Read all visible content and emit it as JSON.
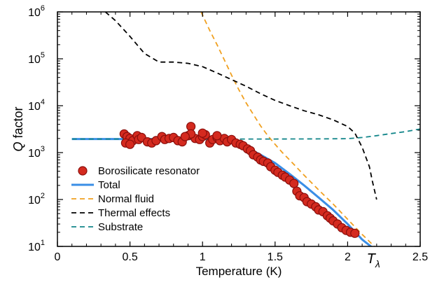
{
  "chart_data": {
    "type": "scatter",
    "y_scale": "log",
    "xlim": [
      0,
      2.5
    ],
    "ylim": [
      10,
      1000000
    ],
    "xlabel": "Temperature (K)",
    "ylabel": "Q factor",
    "ylabel_italic_part": "Q",
    "ylabel_rest": " factor",
    "x_ticks": [
      0,
      0.5,
      1,
      1.5,
      2,
      2.5
    ],
    "x_tick_labels": [
      "0",
      "0.5",
      "1",
      "1.5",
      "2",
      "2.5"
    ],
    "y_tick_bases": [
      "10",
      "10",
      "10",
      "10",
      "10",
      "10"
    ],
    "y_tick_exponents": [
      "1",
      "2",
      "3",
      "4",
      "5",
      "6"
    ],
    "annotation": {
      "symbol": "T",
      "subscript": "λ",
      "x": 2.17
    },
    "legend_position": "lower-left",
    "grid": false,
    "series": [
      {
        "name": "Borosilicate resonator",
        "kind": "scatter",
        "color": "#d42a1f",
        "edge_color": "#8a0e0b",
        "x": [
          0.46,
          0.48,
          0.5,
          0.52,
          0.55,
          0.47,
          0.5,
          0.56,
          0.58,
          0.62,
          0.65,
          0.68,
          0.72,
          0.74,
          0.77,
          0.8,
          0.83,
          0.86,
          0.9,
          0.92,
          0.95,
          0.98,
          1.0,
          1.02,
          1.05,
          1.07,
          1.1,
          1.12,
          1.15,
          1.17,
          1.2,
          1.23,
          1.26,
          1.28,
          1.31,
          1.33,
          1.35,
          1.38,
          1.4,
          1.42,
          1.45,
          1.47,
          1.5,
          1.52,
          1.55,
          1.57,
          1.6,
          1.63,
          1.65,
          1.67,
          1.7,
          1.72,
          1.75,
          1.78,
          1.8,
          1.83,
          1.86,
          1.88,
          1.9,
          1.93,
          1.96,
          1.99,
          2.02,
          2.05,
          0.92,
          0.88,
          1.0,
          1.1
        ],
        "y": [
          2500,
          2200,
          2000,
          1800,
          2300,
          1600,
          1500,
          1900,
          2100,
          1700,
          1600,
          1800,
          2200,
          1900,
          2000,
          2100,
          1800,
          1700,
          2300,
          3600,
          2000,
          1900,
          2200,
          2400,
          1600,
          1900,
          2100,
          1800,
          2000,
          1700,
          1900,
          1600,
          1500,
          1400,
          1200,
          1100,
          900,
          800,
          700,
          650,
          600,
          500,
          420,
          380,
          330,
          300,
          260,
          220,
          150,
          120,
          110,
          90,
          80,
          70,
          60,
          55,
          45,
          40,
          35,
          30,
          25,
          22,
          20,
          19,
          2500,
          2200,
          2600,
          2300
        ]
      },
      {
        "name": "Total",
        "kind": "line",
        "color": "#3a8ee6",
        "dash": "solid",
        "x": [
          0.1,
          0.5,
          0.8,
          1.0,
          1.1,
          1.2,
          1.3,
          1.4,
          1.5,
          1.6,
          1.7,
          1.8,
          1.9,
          2.0,
          2.1,
          2.2
        ],
        "y": [
          1950,
          1950,
          1950,
          1950,
          1900,
          1750,
          1300,
          900,
          600,
          350,
          200,
          110,
          60,
          30,
          14,
          8
        ]
      },
      {
        "name": "Normal fluid",
        "kind": "line",
        "color": "#f0a020",
        "dash": "dashed",
        "x": [
          0.99,
          1.05,
          1.1,
          1.15,
          1.2,
          1.25,
          1.3,
          1.35,
          1.4,
          1.45,
          1.5,
          1.55,
          1.6,
          1.7,
          1.8,
          1.9,
          2.0,
          2.1,
          2.2
        ],
        "y": [
          1000000,
          400000,
          200000,
          95000,
          45000,
          22000,
          11500,
          6500,
          3700,
          2300,
          1500,
          1000,
          700,
          330,
          160,
          80,
          38,
          18,
          9
        ]
      },
      {
        "name": "Thermal effects",
        "kind": "line",
        "color": "#000000",
        "dash": "dashed",
        "x": [
          0.33,
          0.4,
          0.5,
          0.6,
          0.7,
          0.8,
          0.9,
          1.0,
          1.1,
          1.2,
          1.3,
          1.4,
          1.5,
          1.6,
          1.7,
          1.8,
          1.9,
          2.0,
          2.05,
          2.1,
          2.15,
          2.17,
          2.2
        ],
        "y": [
          1000000,
          650000,
          300000,
          130000,
          85000,
          85000,
          80000,
          68000,
          50000,
          36000,
          26000,
          18000,
          13000,
          10000,
          7800,
          6400,
          5000,
          3600,
          2600,
          1300,
          500,
          250,
          100
        ]
      },
      {
        "name": "Substrate",
        "kind": "line",
        "color": "#13868a",
        "dash": "dashed",
        "x": [
          0.1,
          0.5,
          1.0,
          1.5,
          1.8,
          2.0,
          2.1,
          2.2,
          2.3,
          2.4,
          2.5
        ],
        "y": [
          1950,
          1950,
          1950,
          1950,
          1960,
          1980,
          2100,
          2300,
          2550,
          2800,
          3200
        ]
      }
    ]
  }
}
